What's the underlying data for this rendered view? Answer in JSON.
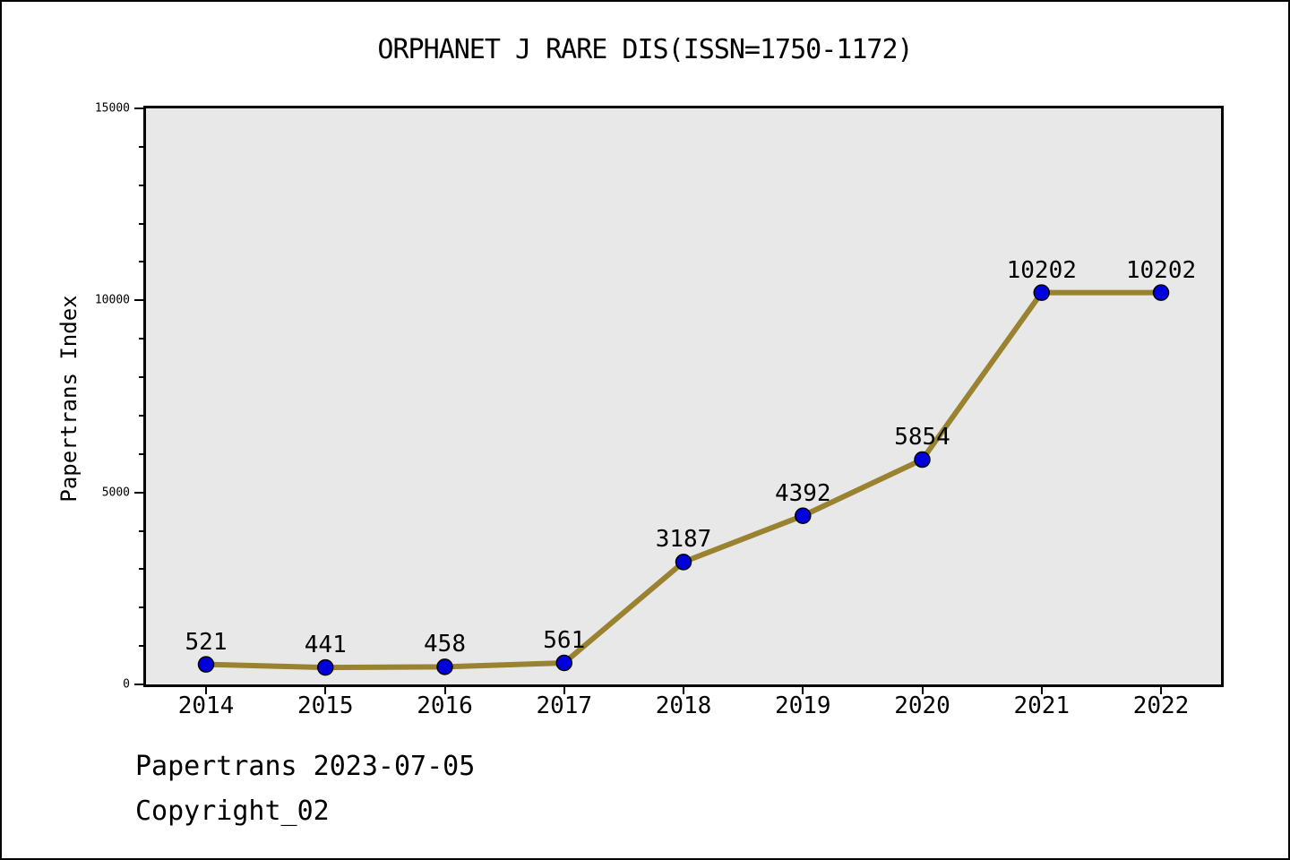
{
  "title": "ORPHANET J RARE DIS(ISSN=1750-1172)",
  "footer": {
    "line1": "Papertrans 2023-07-05",
    "line2": "Copyright_02"
  },
  "chart_data": {
    "type": "line",
    "title": "ORPHANET J RARE DIS(ISSN=1750-1172)",
    "xlabel": "",
    "ylabel": "Papertrans Index",
    "categories": [
      "2014",
      "2015",
      "2016",
      "2017",
      "2018",
      "2019",
      "2020",
      "2021",
      "2022"
    ],
    "values": [
      521,
      441,
      458,
      561,
      3187,
      4392,
      5854,
      10202,
      10202
    ],
    "point_labels": [
      "521",
      "441",
      "458",
      "561",
      "3187",
      "4392",
      "5854",
      "10202",
      "10202"
    ],
    "ylim": [
      0,
      15000
    ],
    "yticks": [
      0,
      5000,
      10000,
      15000
    ],
    "ytick_labels": [
      "0",
      "5000",
      "10000",
      "15000"
    ],
    "ytick_minor_step": 1000,
    "grid": false,
    "legend": "none",
    "colors": {
      "line": "#998230",
      "marker_fill": "#0000dd",
      "marker_edge": "#000000",
      "plot_bg": "#e8e8e8",
      "frame": "#000000",
      "text": "#000000",
      "page_bg": "#ffffff"
    }
  }
}
